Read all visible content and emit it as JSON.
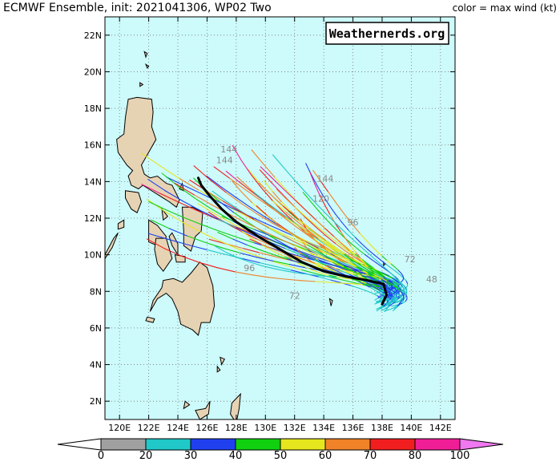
{
  "header": {
    "title": "ECMWF Ensemble, init: 2021041306, WP02 Two",
    "legend_note": "color = max wind (kt)"
  },
  "watermark": "Weathernerds.org",
  "map": {
    "lon_range": [
      119,
      143
    ],
    "lat_range": [
      1,
      23
    ],
    "lon_ticks": [
      {
        "v": 120,
        "t": "120E"
      },
      {
        "v": 122,
        "t": "122E"
      },
      {
        "v": 124,
        "t": "124E"
      },
      {
        "v": 126,
        "t": "126E"
      },
      {
        "v": 128,
        "t": "128E"
      },
      {
        "v": 130,
        "t": "130E"
      },
      {
        "v": 132,
        "t": "132E"
      },
      {
        "v": 134,
        "t": "134E"
      },
      {
        "v": 136,
        "t": "136E"
      },
      {
        "v": 138,
        "t": "138E"
      },
      {
        "v": 140,
        "t": "140E"
      },
      {
        "v": 142,
        "t": "142E"
      }
    ],
    "lat_ticks": [
      {
        "v": 2,
        "t": "2N"
      },
      {
        "v": 4,
        "t": "4N"
      },
      {
        "v": 6,
        "t": "6N"
      },
      {
        "v": 8,
        "t": "8N"
      },
      {
        "v": 10,
        "t": "10N"
      },
      {
        "v": 12,
        "t": "12N"
      },
      {
        "v": 14,
        "t": "14N"
      },
      {
        "v": 16,
        "t": "16N"
      },
      {
        "v": 18,
        "t": "18N"
      },
      {
        "v": 20,
        "t": "20N"
      },
      {
        "v": 22,
        "t": "22N"
      }
    ],
    "ocean_color": "#cdfafa",
    "land_color": "#e6d3b4",
    "grid": true,
    "ensemble_mean_color": "#000000",
    "ensemble_mean": [
      [
        138.0,
        7.3
      ],
      [
        138.3,
        7.8
      ],
      [
        138.1,
        8.4
      ],
      [
        137.0,
        8.6
      ],
      [
        135.6,
        8.8
      ],
      [
        134.0,
        9.1
      ],
      [
        132.5,
        9.6
      ],
      [
        131.0,
        10.3
      ],
      [
        129.5,
        11.0
      ],
      [
        128.0,
        11.8
      ],
      [
        127.0,
        12.5
      ],
      [
        126.2,
        13.2
      ],
      [
        125.6,
        13.8
      ],
      [
        125.4,
        14.2
      ]
    ],
    "forecast_hour_labels": [
      {
        "text": "144",
        "lon": 127.5,
        "lat": 15.6
      },
      {
        "text": "144",
        "lon": 127.2,
        "lat": 15.0
      },
      {
        "text": "144",
        "lon": 134.1,
        "lat": 14.0
      },
      {
        "text": "120",
        "lon": 133.8,
        "lat": 12.9
      },
      {
        "text": "96",
        "lon": 136.0,
        "lat": 11.6
      },
      {
        "text": "72",
        "lon": 139.9,
        "lat": 9.6
      },
      {
        "text": "48",
        "lon": 141.4,
        "lat": 8.5
      },
      {
        "text": "96",
        "lon": 128.9,
        "lat": 9.1
      },
      {
        "text": "72",
        "lon": 132.0,
        "lat": 7.6
      }
    ]
  },
  "colorbar": {
    "bins": [
      {
        "label": "0",
        "color": "#ffffff"
      },
      {
        "label": "20",
        "color": "#a0a0a0"
      },
      {
        "label": "30",
        "color": "#20c8c8"
      },
      {
        "label": "40",
        "color": "#2040f0"
      },
      {
        "label": "50",
        "color": "#10d010"
      },
      {
        "label": "60",
        "color": "#e6e61e"
      },
      {
        "label": "70",
        "color": "#f08228"
      },
      {
        "label": "80",
        "color": "#f01e1e"
      },
      {
        "label": "100",
        "color": "#f01e96"
      },
      {
        "label": "",
        "color": "#f078f0"
      }
    ]
  }
}
